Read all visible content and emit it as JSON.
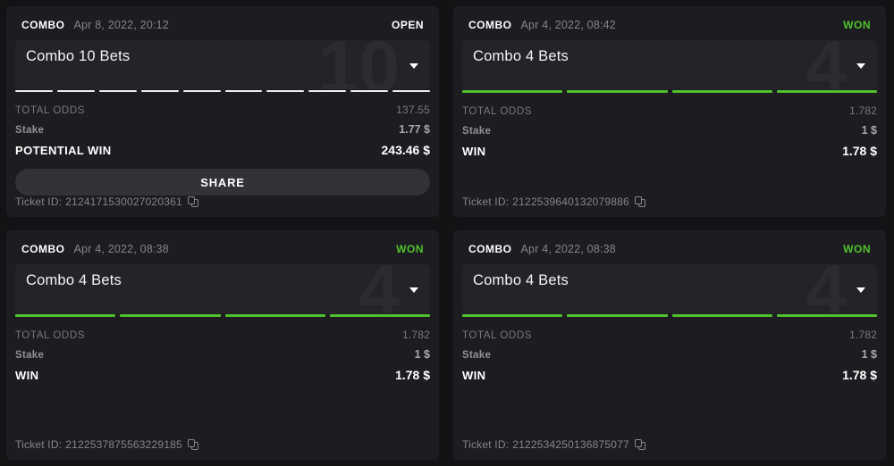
{
  "colors": {
    "page_bg": "#131316",
    "card_bg": "#1d1d21",
    "title_panel_bg": "#232329",
    "accent_green_won": "#4fc22c",
    "open_status": "#ffffff",
    "muted_text": "#77777c"
  },
  "cards": [
    {
      "type_label": "COMBO",
      "datetime": "Apr 8, 2022, 20:12",
      "status": "OPEN",
      "title": "Combo 10 Bets",
      "watermark": "10",
      "bets_count": 10,
      "total_odds_label": "TOTAL ODDS",
      "total_odds": "137.55",
      "stake_label": "Stake",
      "stake": "1.77 $",
      "win_label": "POTENTIAL WIN",
      "win": "243.46 $",
      "share_label": "SHARE",
      "ticket_label": "Ticket ID:",
      "ticket_id": "2124171530027020361"
    },
    {
      "type_label": "COMBO",
      "datetime": "Apr 4, 2022, 08:42",
      "status": "WON",
      "title": "Combo 4 Bets",
      "watermark": "4",
      "bets_count": 4,
      "total_odds_label": "TOTAL ODDS",
      "total_odds": "1.782",
      "stake_label": "Stake",
      "stake": "1 $",
      "win_label": "WIN",
      "win": "1.78 $",
      "ticket_label": "Ticket ID:",
      "ticket_id": "2122539640132079886"
    },
    {
      "type_label": "COMBO",
      "datetime": "Apr 4, 2022, 08:38",
      "status": "WON",
      "title": "Combo 4 Bets",
      "watermark": "4",
      "bets_count": 4,
      "total_odds_label": "TOTAL ODDS",
      "total_odds": "1.782",
      "stake_label": "Stake",
      "stake": "1 $",
      "win_label": "WIN",
      "win": "1.78 $",
      "ticket_label": "Ticket ID:",
      "ticket_id": "2122537875563229185"
    },
    {
      "type_label": "COMBO",
      "datetime": "Apr 4, 2022, 08:38",
      "status": "WON",
      "title": "Combo 4 Bets",
      "watermark": "4",
      "bets_count": 4,
      "total_odds_label": "TOTAL ODDS",
      "total_odds": "1.782",
      "stake_label": "Stake",
      "stake": "1 $",
      "win_label": "WIN",
      "win": "1.78 $",
      "ticket_label": "Ticket ID:",
      "ticket_id": "2122534250136875077"
    }
  ]
}
